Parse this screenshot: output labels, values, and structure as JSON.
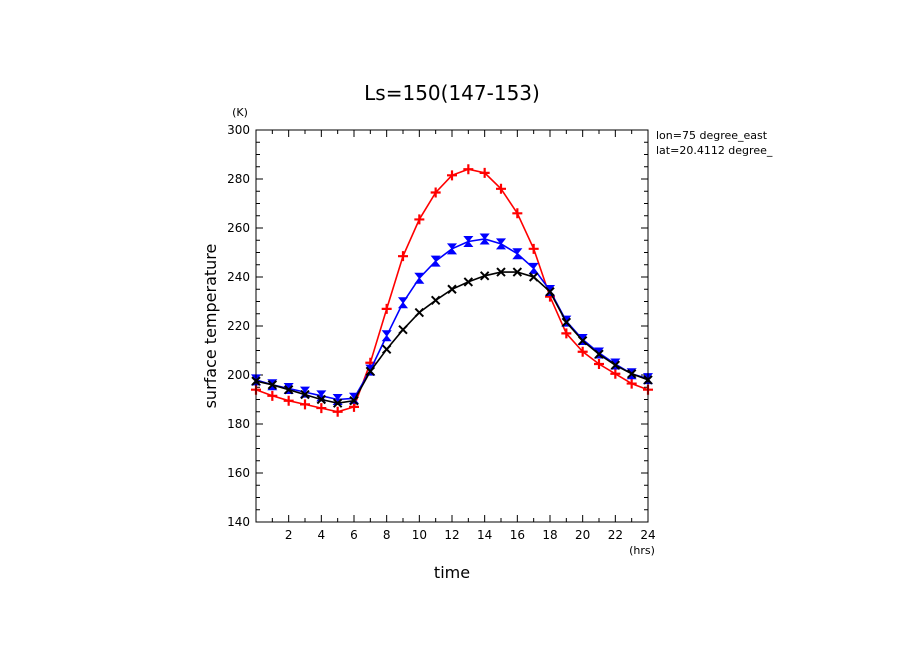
{
  "chart_data": {
    "type": "line",
    "title": "Ls=150(147-153)",
    "xlabel": "time",
    "ylabel": "surface temperature",
    "x_unit": "(hrs)",
    "y_unit": "(K)",
    "annotations": [
      "lon=75 degree_east",
      "lat=20.4112 degree_"
    ],
    "xlim": [
      0,
      24
    ],
    "ylim": [
      140,
      300
    ],
    "x_ticks": [
      2,
      4,
      6,
      8,
      10,
      12,
      14,
      16,
      18,
      20,
      22,
      24
    ],
    "y_ticks": [
      140,
      160,
      180,
      200,
      220,
      240,
      260,
      280,
      300
    ],
    "x": [
      0,
      1,
      2,
      3,
      4,
      5,
      6,
      7,
      8,
      9,
      10,
      11,
      12,
      13,
      14,
      15,
      16,
      17,
      18,
      19,
      20,
      21,
      22,
      23,
      24
    ],
    "grid": false,
    "series": [
      {
        "color": "#ff0000",
        "marker": "plus",
        "values": [
          194,
          191.5,
          189.5,
          188,
          186.5,
          185,
          187,
          205,
          227,
          248.5,
          263.5,
          274.5,
          281.5,
          284,
          282.5,
          276,
          266,
          251.5,
          232,
          217,
          209.5,
          204.5,
          200.5,
          196.5,
          194
        ]
      },
      {
        "color": "#0000ff",
        "marker": "hourglass",
        "values": [
          198,
          196,
          194.5,
          193,
          191.5,
          190,
          190.5,
          202,
          216,
          229.5,
          239.5,
          246.5,
          251.5,
          254.5,
          255.5,
          253.5,
          249.5,
          243.5,
          234.5,
          222,
          214.5,
          209,
          204.5,
          200.5,
          198.5
        ]
      },
      {
        "color": "#000000",
        "marker": "cross",
        "values": [
          197.5,
          196,
          194,
          192,
          190,
          188.5,
          189.5,
          201.5,
          210.5,
          218.5,
          225.5,
          230.5,
          235,
          238,
          240.5,
          242,
          242,
          240,
          234,
          221.5,
          214,
          208.5,
          204,
          200.5,
          198
        ]
      }
    ]
  }
}
